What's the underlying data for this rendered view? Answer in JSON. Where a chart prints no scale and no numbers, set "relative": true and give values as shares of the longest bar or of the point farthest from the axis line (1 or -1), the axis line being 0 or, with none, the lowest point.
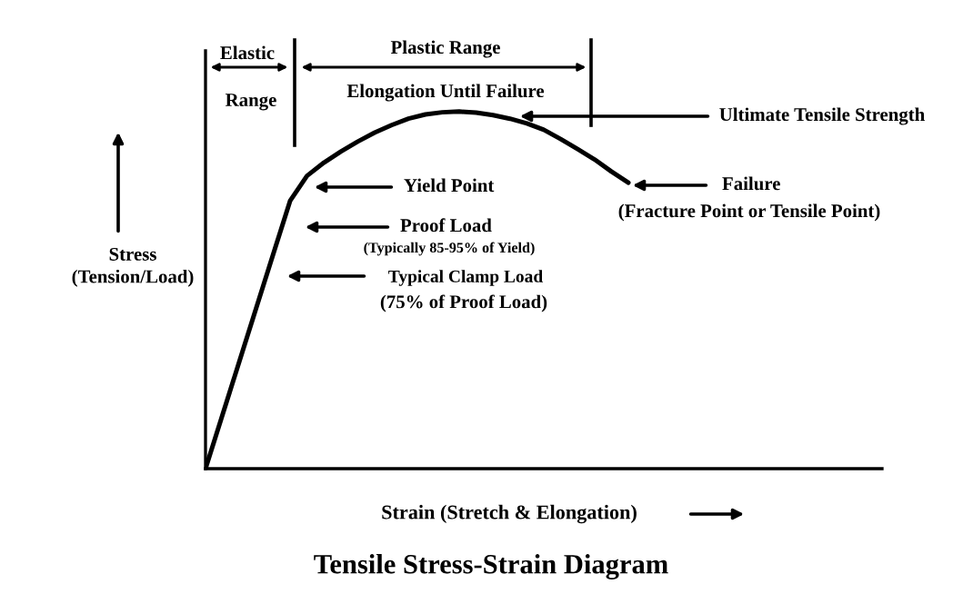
{
  "chart_data": {
    "type": "line",
    "relative": true,
    "title": "Tensile Stress-Strain Diagram",
    "xlabel": "Strain (Stretch & Elongation)",
    "ylabel": "Stress\n(Tension/Load)",
    "categories": [
      null,
      null,
      null,
      null,
      null,
      null,
      null,
      null,
      null,
      null,
      null,
      null,
      null,
      null,
      null,
      null,
      null,
      null,
      null,
      null,
      null,
      null,
      null,
      null,
      null,
      null,
      null,
      null,
      null,
      null,
      null,
      null,
      null,
      null,
      null,
      null,
      null,
      null,
      null,
      null,
      null
    ],
    "series": [
      {
        "color": "#000000",
        "values": [
          0,
          0.15,
          0.3,
          0.45,
          0.6,
          0.75,
          0.82,
          0.857,
          0.888,
          0.916,
          0.941,
          0.962,
          0.98,
          0.992,
          0.998,
          1,
          0.997,
          0.99,
          0.98,
          0.967,
          0.949,
          0.923,
          0.895,
          0.866,
          0.832,
          0.801,
          null,
          null,
          null,
          null,
          null,
          null,
          null,
          null,
          null,
          null,
          null,
          null,
          null,
          null,
          null
        ]
      }
    ],
    "annotations": [
      "Elastic",
      "Range",
      "Plastic Range",
      "Elongation Until Failure",
      "Ultimate Tensile Strength",
      "Yield Point",
      "Proof Load",
      "(Typically 85-95% of Yield)",
      "Typical Clamp Load",
      "(75% of Proof Load)",
      "Failure",
      "(Fracture Point or Tensile Point)"
    ],
    "legend": false,
    "marker": "none",
    "line_style": "solid"
  }
}
